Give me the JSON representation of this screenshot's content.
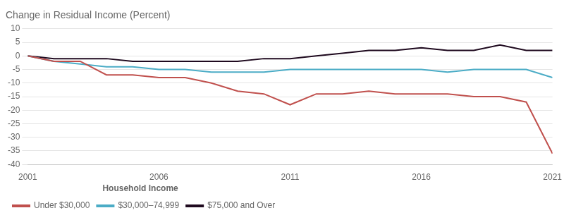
{
  "chart_data": {
    "type": "line",
    "title": "Change in Residual Income (Percent)",
    "x": [
      2001,
      2002,
      2003,
      2004,
      2005,
      2006,
      2007,
      2008,
      2009,
      2010,
      2011,
      2012,
      2013,
      2014,
      2015,
      2016,
      2017,
      2018,
      2019,
      2020,
      2021
    ],
    "series": [
      {
        "name": "Under $30,000",
        "color": "#C0504D",
        "values": [
          0,
          -2,
          -2,
          -7,
          -7,
          -8,
          -8,
          -10,
          -13,
          -14,
          -18,
          -14,
          -14,
          -13,
          -14,
          -14,
          -14,
          -15,
          -15,
          -17,
          -36
        ]
      },
      {
        "name": "$30,000–74,999",
        "color": "#4BACC6",
        "values": [
          0,
          -2,
          -3,
          -4,
          -4,
          -5,
          -5,
          -6,
          -6,
          -6,
          -5,
          -5,
          -5,
          -5,
          -5,
          -5,
          -6,
          -5,
          -5,
          -5,
          -8
        ]
      },
      {
        "name": "$75,000 and Over",
        "color": "#1F0A1F",
        "values": [
          0,
          -1,
          -1,
          -1,
          -2,
          -2,
          -2,
          -2,
          -2,
          -1,
          -1,
          0,
          1,
          2,
          2,
          3,
          2,
          2,
          4,
          2,
          2
        ]
      }
    ],
    "legend_title": "Household Income",
    "xlim": [
      2001,
      2021
    ],
    "xticks": [
      2001,
      2006,
      2011,
      2016,
      2021
    ],
    "ylim": [
      -40,
      10
    ],
    "yticks": [
      -40,
      -35,
      -30,
      -25,
      -20,
      -15,
      -10,
      -5,
      0,
      5,
      10
    ],
    "grid": "y",
    "legend": "bottom"
  }
}
